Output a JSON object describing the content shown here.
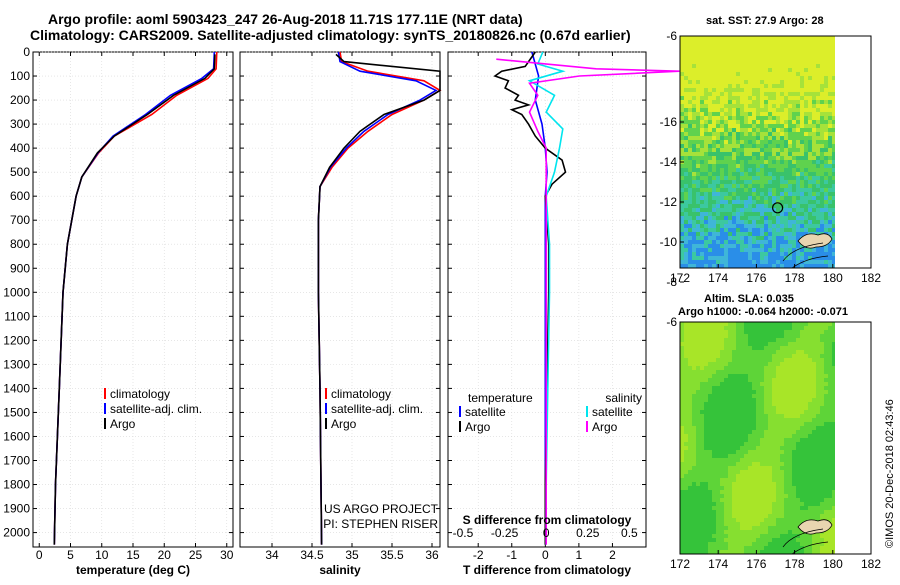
{
  "title": {
    "line1": "Argo profile: aoml 5903423_247 26-Aug-2018 11.71S 177.11E (NRT data)",
    "line2": "Climatology: CARS2009. Satellite-adjusted climatology: synTS_20180826.nc (0.67d earlier)"
  },
  "colors": {
    "clim": "#ff0000",
    "sat": "#0000ff",
    "argo": "#000000",
    "s_sat": "#00e5ee",
    "s_argo": "#ff00ff"
  },
  "chart_data": [
    {
      "type": "line",
      "id": "temperature",
      "xlabel": "temperature (deg C)",
      "ylabel": "",
      "xlim": [
        -1,
        31
      ],
      "ylim": [
        2060,
        0
      ],
      "xticks": [
        "0",
        "5",
        "10",
        "15",
        "20",
        "25",
        "30"
      ],
      "legend": {
        "labels": [
          "climatology",
          "satellite-adj. clim.",
          "Argo"
        ]
      },
      "series": [
        {
          "name": "climatology",
          "depth": [
            0,
            70,
            110,
            180,
            260,
            350,
            420,
            520,
            600,
            800,
            1000,
            1400,
            1800,
            2050
          ],
          "values": [
            28.4,
            28.3,
            27.0,
            22.0,
            18.0,
            12.0,
            9.5,
            6.8,
            5.9,
            4.5,
            3.8,
            3.2,
            2.6,
            2.4
          ]
        },
        {
          "name": "satellite-adj. clim.",
          "depth": [
            0,
            70,
            110,
            180,
            260,
            350,
            420,
            520,
            600,
            800,
            1000,
            1400,
            1800,
            2050
          ],
          "values": [
            28.0,
            27.9,
            26.0,
            21.0,
            17.0,
            11.8,
            9.4,
            6.8,
            5.9,
            4.5,
            3.8,
            3.2,
            2.6,
            2.4
          ]
        },
        {
          "name": "Argo",
          "depth": [
            10,
            70,
            110,
            180,
            260,
            350,
            420,
            520,
            600,
            800,
            1000,
            1400,
            1800,
            2050
          ],
          "values": [
            28.1,
            28.0,
            26.5,
            21.5,
            17.3,
            12.0,
            9.3,
            6.8,
            5.9,
            4.5,
            3.8,
            3.2,
            2.6,
            2.4
          ]
        }
      ]
    },
    {
      "type": "line",
      "id": "salinity",
      "xlabel": "salinity",
      "ylabel": "",
      "xlim": [
        33.6,
        36.1
      ],
      "ylim": [
        2060,
        0
      ],
      "xticks": [
        "34",
        "34.5",
        "35",
        "35.5",
        "36"
      ],
      "legend": {
        "labels": [
          "climatology",
          "satellite-adj. clim.",
          "Argo"
        ]
      },
      "annotation": [
        "US ARGO PROJECT",
        "PI: STEPHEN RISER"
      ],
      "series": [
        {
          "name": "climatology",
          "depth": [
            0,
            40,
            80,
            120,
            160,
            200,
            260,
            330,
            400,
            480,
            560,
            700,
            1000,
            1400,
            2050
          ],
          "values": [
            34.85,
            34.87,
            35.2,
            35.9,
            36.1,
            35.9,
            35.5,
            35.2,
            34.95,
            34.75,
            34.6,
            34.58,
            34.58,
            34.6,
            34.62
          ]
        },
        {
          "name": "satellite-adj. clim.",
          "depth": [
            0,
            40,
            80,
            120,
            160,
            200,
            260,
            330,
            400,
            480,
            560,
            700,
            1000,
            1400,
            2050
          ],
          "values": [
            34.83,
            34.85,
            35.1,
            35.8,
            36.05,
            35.85,
            35.45,
            35.15,
            34.93,
            34.73,
            34.6,
            34.58,
            34.58,
            34.6,
            34.62
          ]
        },
        {
          "name": "Argo",
          "depth": [
            10,
            40,
            80,
            120,
            160,
            200,
            260,
            330,
            400,
            480,
            560,
            700,
            1000,
            1400,
            2050
          ],
          "values": [
            34.8,
            34.9,
            36.1,
            36.1,
            36.1,
            35.9,
            35.4,
            35.1,
            34.9,
            34.72,
            34.6,
            34.58,
            34.58,
            34.6,
            34.62
          ]
        }
      ]
    },
    {
      "type": "line",
      "id": "difference",
      "xlabel": "T difference from climatology",
      "ylabel": "",
      "xlim": [
        -2.9,
        3.0
      ],
      "ylim": [
        2060,
        0
      ],
      "xticks": [
        "-2",
        "-1",
        "0",
        "1",
        "2"
      ],
      "sticks": [
        "-0.5",
        "-0.25",
        "0",
        "0.25",
        "0.5"
      ],
      "stitle": "S difference from climatology",
      "legend": {
        "t_title": "temperature",
        "s_title": "salinity",
        "t_labels": [
          "satellite",
          "Argo"
        ],
        "s_labels": [
          "satellite",
          "Argo"
        ]
      },
      "series": [
        {
          "name": "T satellite",
          "depth": [
            0,
            100,
            200,
            300,
            400,
            500,
            600,
            800,
            1000,
            1400,
            1800,
            2050
          ],
          "values": [
            -0.4,
            -0.2,
            -0.3,
            -0.1,
            0,
            0.05,
            0,
            0,
            0,
            0,
            0,
            0
          ]
        },
        {
          "name": "T Argo",
          "depth": [
            0,
            60,
            80,
            100,
            120,
            150,
            180,
            200,
            220,
            240,
            260,
            300,
            350,
            400,
            450,
            500,
            550,
            600,
            800,
            1000,
            1400,
            1800,
            2050
          ],
          "values": [
            -0.3,
            -0.6,
            -1.3,
            -1.5,
            -1.1,
            -1.2,
            -0.8,
            -0.9,
            -0.5,
            -1.0,
            -0.7,
            -0.5,
            -0.3,
            0,
            0.5,
            0.6,
            0.2,
            0,
            0.1,
            0.1,
            0.05,
            0,
            0
          ]
        },
        {
          "name": "S satellite",
          "depth": [
            0,
            50,
            80,
            120,
            180,
            250,
            320,
            400,
            500,
            600,
            800,
            1000,
            1400,
            1800,
            2050
          ],
          "values": [
            -0.02,
            -0.05,
            0.1,
            -0.1,
            0.05,
            0.0,
            0.1,
            0.08,
            0.05,
            0.0,
            0.02,
            0.02,
            0.01,
            0,
            0
          ]
        },
        {
          "name": "S Argo",
          "depth": [
            30,
            70,
            80,
            100,
            130,
            180,
            250,
            330,
            400,
            500,
            600,
            800,
            1000,
            1400,
            1800,
            2050
          ],
          "values": [
            -0.3,
            0.3,
            0.8,
            0.2,
            -0.1,
            -0.05,
            -0.1,
            -0.05,
            0.0,
            0.0,
            0.0,
            0.0,
            0.0,
            0.0,
            0.0,
            0.0
          ]
        }
      ]
    }
  ],
  "axes": {
    "depth_ticks": [
      "0",
      "100",
      "200",
      "300",
      "400",
      "500",
      "600",
      "700",
      "800",
      "900",
      "1000",
      "1100",
      "1200",
      "1300",
      "1400",
      "1500",
      "1600",
      "1700",
      "1800",
      "1900",
      "2000"
    ]
  },
  "maps": {
    "sst_title": "sat. SST: 27.9 Argo: 28",
    "sla_title1": "Altim. SLA: 0.035",
    "sla_title2": "Argo h1000: -0.064 h2000: -0.071",
    "lon_ticks": [
      "172",
      "174",
      "176",
      "178",
      "180",
      "182"
    ],
    "lat_ticks": [
      "-6",
      "-8",
      "-10",
      "-12",
      "-14",
      "-16"
    ],
    "argo_lon": 177.11,
    "argo_lat": -11.71
  },
  "footer": "©IMOS 20-Dec-2018 02:43:46"
}
